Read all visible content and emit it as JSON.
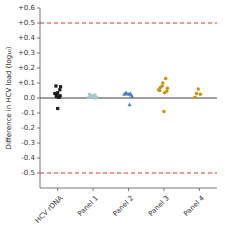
{
  "chart_data": {
    "type": "scatter",
    "ylabel": "Difference in HCV load (log₁₀)",
    "ylim": [
      -0.6,
      0.6
    ],
    "yticks": [
      -0.5,
      -0.4,
      -0.3,
      -0.2,
      -0.1,
      {
        "value": 0.0,
        "label": "0.0"
      },
      {
        "value": 0.1,
        "label": "+0.1"
      },
      {
        "value": 0.2,
        "label": "+0.2"
      },
      {
        "value": 0.3,
        "label": "+0.3"
      },
      {
        "value": 0.4,
        "label": "+0.4"
      },
      {
        "value": 0.5,
        "label": "+0.5"
      },
      {
        "value": 0.6,
        "label": "+0.6"
      }
    ],
    "xlim": [
      0.5,
      5.5
    ],
    "xticks": [
      {
        "value": 1,
        "label": "HCV rDNA"
      },
      {
        "value": 2,
        "label": "Panel 1"
      },
      {
        "value": 3,
        "label": "Panel 2"
      },
      {
        "value": 4,
        "label": "Panel 3"
      },
      {
        "value": 5,
        "label": "Panel 4"
      }
    ],
    "reference_lines": [
      {
        "value": 0,
        "color": "#404040",
        "line_style": "solid"
      },
      {
        "value": -0.5,
        "color": "#cc0000",
        "line_style": "dashed"
      },
      {
        "value": 0.5,
        "color": "#cc0000",
        "line_style": "dashed"
      }
    ],
    "series": [
      {
        "color": "#1a1a1a",
        "marker": "square",
        "x": [
          1.0,
          1.06,
          0.95,
          1.08,
          0.92,
          1.02,
          1.0,
          0.96,
          1.04,
          0.98,
          1.07
        ],
        "values": [
          0.035,
          0.055,
          0.08,
          0.075,
          0.03,
          0.005,
          -0.07,
          0.01,
          0.005,
          0.02,
          0.015
        ]
      },
      {
        "color": "#a8c8c8",
        "marker": "circle",
        "x": [
          1.9,
          1.97,
          2.03,
          1.94,
          2.07,
          2.01,
          1.88,
          2.05,
          1.96,
          2.1
        ],
        "values": [
          0.025,
          0.015,
          0.01,
          0.005,
          0.0,
          0.01,
          0.005,
          0.02,
          0.015,
          0.005
        ]
      },
      {
        "color": "#4a7fc1",
        "marker": "triangle",
        "x": [
          2.93,
          3.0,
          3.07,
          3.03,
          2.95,
          3.1,
          2.88,
          3.05
        ],
        "values": [
          0.035,
          0.025,
          0.02,
          -0.045,
          0.03,
          0.01,
          0.025,
          0.03
        ]
      },
      {
        "color": "#c8960a",
        "marker": "circle",
        "x": [
          3.9,
          3.97,
          4.05,
          3.88,
          4.08,
          3.95,
          4.02,
          3.85,
          4.1,
          4.0
        ],
        "values": [
          0.07,
          0.1,
          0.13,
          0.05,
          0.045,
          0.08,
          0.035,
          0.055,
          0.065,
          -0.09
        ]
      },
      {
        "color": "#c8960a",
        "marker": "circle",
        "x": [
          4.92,
          4.97,
          5.03,
          4.88
        ],
        "values": [
          0.03,
          0.06,
          0.025,
          0.005
        ]
      }
    ]
  }
}
